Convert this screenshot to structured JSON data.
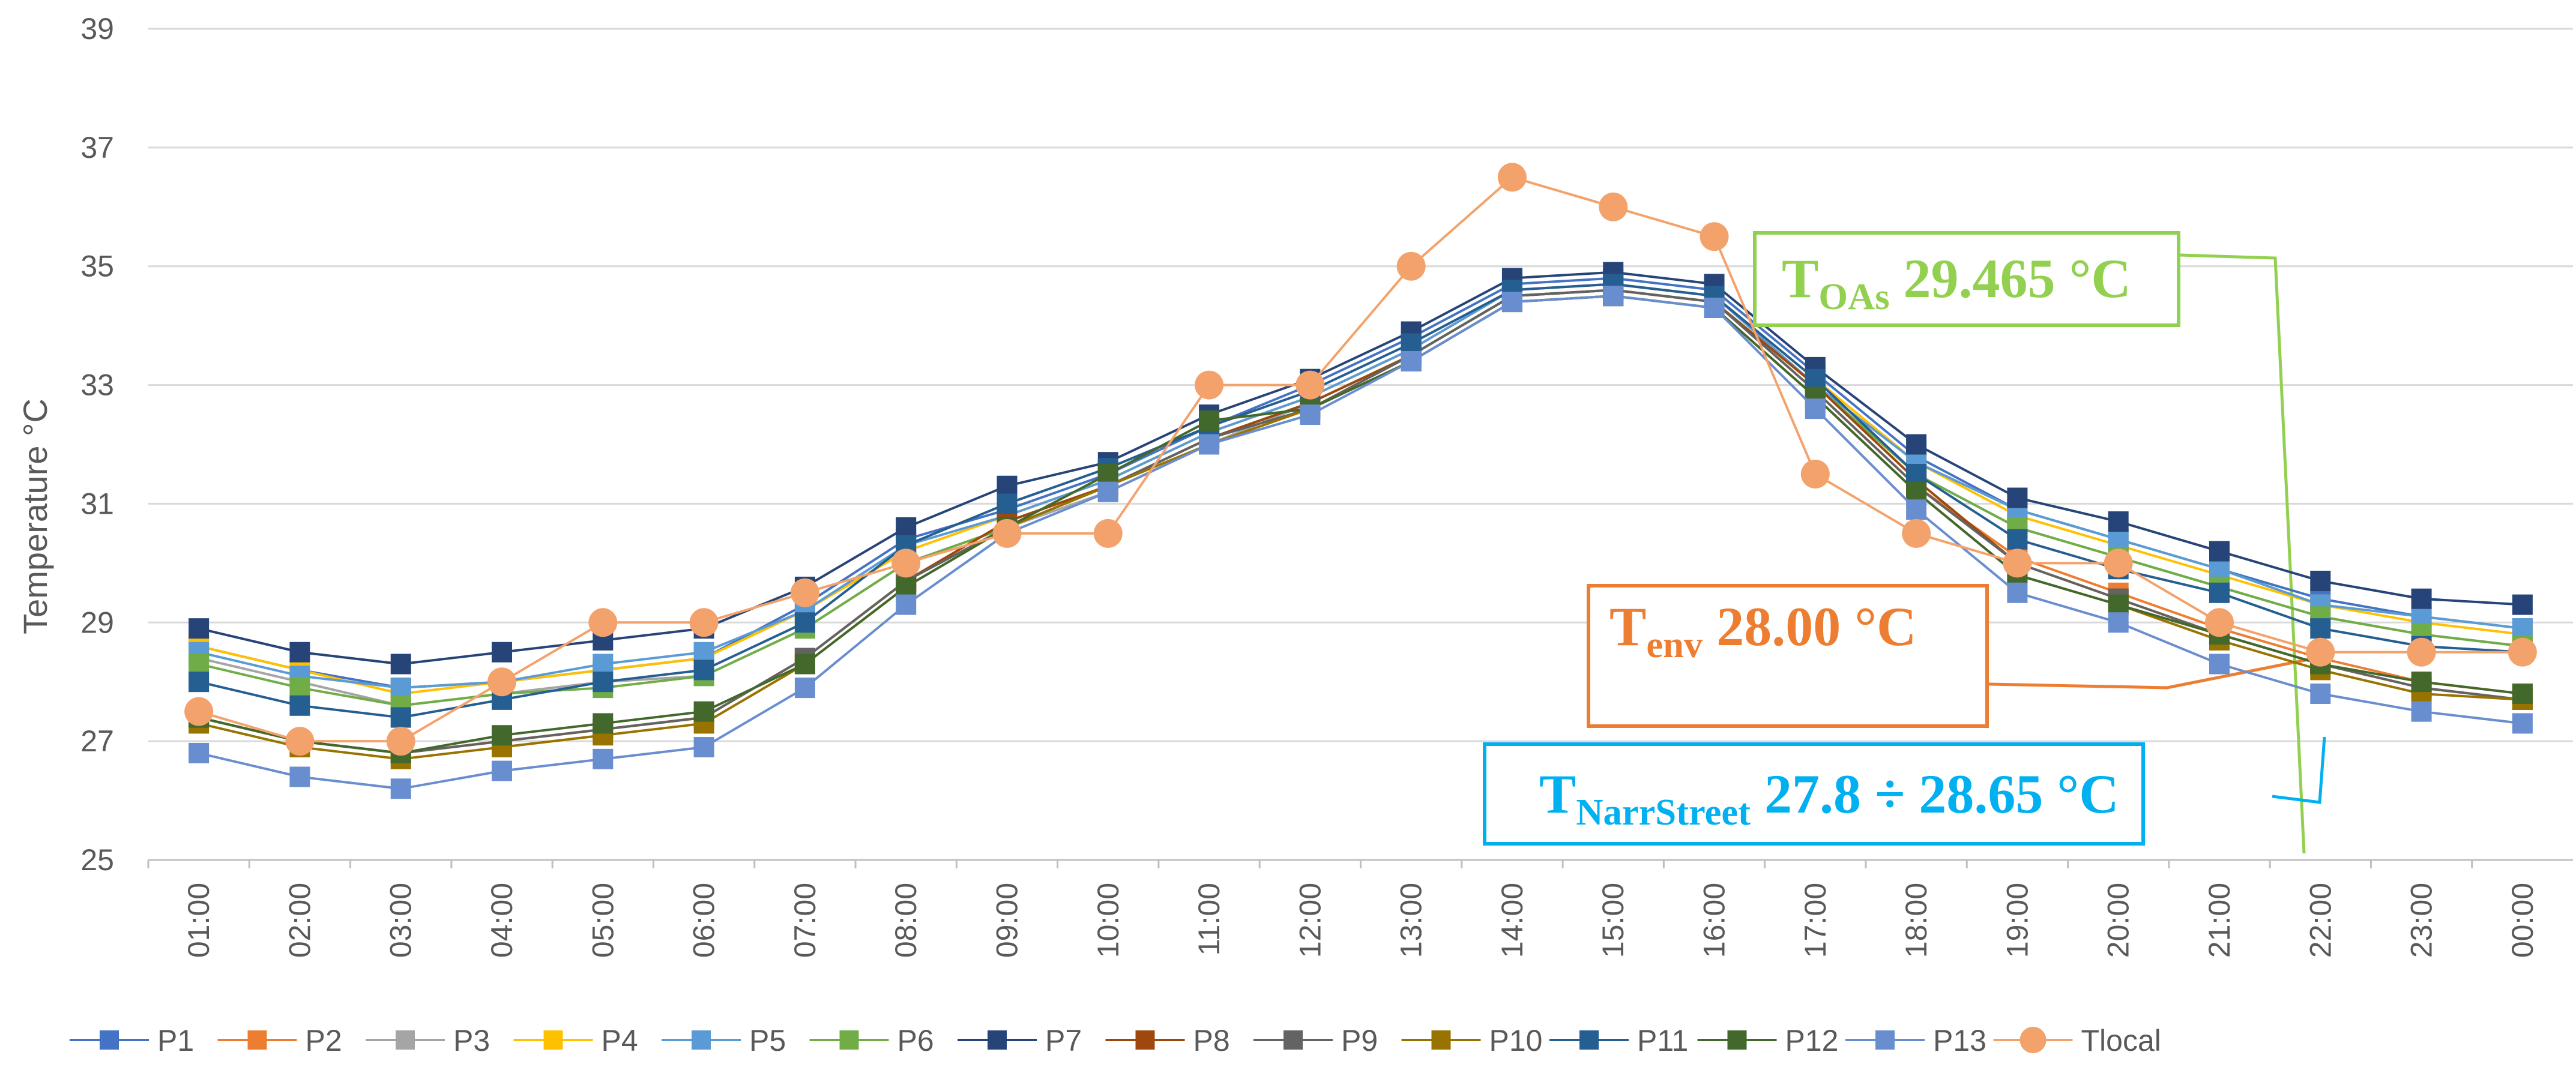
{
  "chart_data": {
    "type": "line",
    "title": "",
    "xlabel": "",
    "ylabel": "Temperature °C",
    "ylim": [
      25,
      39
    ],
    "yticks": [
      25,
      27,
      29,
      31,
      33,
      35,
      37,
      39
    ],
    "grid": true,
    "legend_position": "bottom",
    "categories": [
      "01:00",
      "02:00",
      "03:00",
      "04:00",
      "05:00",
      "06:00",
      "07:00",
      "08:00",
      "09:00",
      "10:00",
      "11:00",
      "12:00",
      "13:00",
      "14:00",
      "15:00",
      "16:00",
      "17:00",
      "18:00",
      "19:00",
      "20:00",
      "21:00",
      "22:00",
      "23:00",
      "00:00"
    ],
    "series": [
      {
        "name": "P1",
        "color": "#4472c4",
        "marker": "square",
        "values": [
          28.6,
          28.2,
          27.9,
          28.0,
          28.2,
          28.4,
          29.3,
          30.4,
          30.9,
          31.5,
          32.3,
          33.0,
          33.8,
          34.7,
          34.8,
          34.6,
          33.2,
          31.8,
          30.9,
          30.4,
          29.9,
          29.4,
          29.1,
          28.9
        ]
      },
      {
        "name": "P2",
        "color": "#ed7d31",
        "marker": "square",
        "values": [
          27.4,
          27.0,
          26.8,
          27.0,
          27.2,
          27.4,
          28.4,
          29.7,
          30.7,
          31.3,
          32.1,
          32.7,
          33.5,
          34.5,
          34.6,
          34.4,
          32.9,
          31.3,
          30.1,
          29.5,
          28.9,
          28.4,
          28.0,
          27.8
        ]
      },
      {
        "name": "P3",
        "color": "#a5a5a5",
        "marker": "square",
        "values": [
          28.4,
          28.0,
          27.6,
          27.8,
          28.0,
          28.1,
          28.9,
          30.0,
          30.6,
          31.2,
          32.0,
          32.7,
          33.5,
          34.5,
          34.6,
          34.4,
          33.0,
          31.5,
          30.6,
          30.1,
          29.6,
          29.1,
          28.8,
          28.6
        ]
      },
      {
        "name": "P4",
        "color": "#ffc000",
        "marker": "square",
        "values": [
          28.6,
          28.2,
          27.8,
          28.0,
          28.2,
          28.4,
          29.2,
          30.2,
          30.8,
          31.4,
          32.2,
          32.8,
          33.6,
          34.6,
          34.7,
          34.5,
          33.1,
          31.7,
          30.8,
          30.3,
          29.8,
          29.3,
          29.0,
          28.8
        ]
      },
      {
        "name": "P5",
        "color": "#5b9bd5",
        "marker": "square",
        "values": [
          28.5,
          28.1,
          27.9,
          28.0,
          28.3,
          28.5,
          29.2,
          30.3,
          30.8,
          31.4,
          32.2,
          32.8,
          33.6,
          34.6,
          34.7,
          34.5,
          33.0,
          31.7,
          30.9,
          30.4,
          29.9,
          29.3,
          29.1,
          28.9
        ]
      },
      {
        "name": "P6",
        "color": "#70ad47",
        "marker": "square",
        "values": [
          28.3,
          27.9,
          27.6,
          27.8,
          27.9,
          28.1,
          28.9,
          30.0,
          30.6,
          31.3,
          32.1,
          32.7,
          33.5,
          34.5,
          34.6,
          34.4,
          33.0,
          31.5,
          30.6,
          30.1,
          29.6,
          29.1,
          28.8,
          28.6
        ]
      },
      {
        "name": "P7",
        "color": "#264478",
        "marker": "square",
        "values": [
          28.9,
          28.5,
          28.3,
          28.5,
          28.7,
          28.9,
          29.6,
          30.6,
          31.3,
          31.7,
          32.5,
          33.1,
          33.9,
          34.8,
          34.9,
          34.7,
          33.3,
          32.0,
          31.1,
          30.7,
          30.2,
          29.7,
          29.4,
          29.3
        ]
      },
      {
        "name": "P8",
        "color": "#9e480e",
        "marker": "square",
        "values": [
          27.4,
          27.0,
          26.8,
          27.0,
          27.2,
          27.4,
          28.4,
          29.7,
          30.7,
          31.3,
          32.1,
          32.7,
          33.5,
          34.5,
          34.6,
          34.4,
          33.0,
          31.4,
          30.0,
          29.4,
          28.8,
          28.3,
          27.9,
          27.7
        ]
      },
      {
        "name": "P9",
        "color": "#636363",
        "marker": "square",
        "values": [
          27.4,
          27.0,
          26.8,
          27.0,
          27.2,
          27.4,
          28.4,
          29.7,
          30.6,
          31.3,
          32.1,
          32.6,
          33.5,
          34.5,
          34.6,
          34.4,
          32.9,
          31.3,
          30.0,
          29.4,
          28.8,
          28.3,
          27.9,
          27.7
        ]
      },
      {
        "name": "P10",
        "color": "#997300",
        "marker": "square",
        "values": [
          27.3,
          26.9,
          26.7,
          26.9,
          27.1,
          27.3,
          28.3,
          29.6,
          30.6,
          31.3,
          32.0,
          32.6,
          33.4,
          34.4,
          34.5,
          34.3,
          32.8,
          31.2,
          29.8,
          29.3,
          28.7,
          28.2,
          27.8,
          27.7
        ]
      },
      {
        "name": "P11",
        "color": "#255e91",
        "marker": "square",
        "values": [
          28.0,
          27.6,
          27.4,
          27.7,
          28.0,
          28.2,
          29.0,
          30.3,
          31.0,
          31.6,
          32.3,
          32.9,
          33.7,
          34.6,
          34.7,
          34.5,
          33.1,
          31.5,
          30.4,
          29.9,
          29.5,
          28.9,
          28.6,
          28.5
        ]
      },
      {
        "name": "P12",
        "color": "#43682b",
        "marker": "square",
        "values": [
          27.4,
          27.0,
          26.8,
          27.1,
          27.3,
          27.5,
          28.3,
          29.6,
          30.6,
          31.5,
          32.4,
          32.6,
          33.4,
          34.4,
          34.5,
          34.3,
          32.8,
          31.2,
          29.8,
          29.3,
          28.8,
          28.3,
          28.0,
          27.8
        ]
      },
      {
        "name": "P13",
        "color": "#698ed0",
        "marker": "square",
        "values": [
          26.8,
          26.4,
          26.2,
          26.5,
          26.7,
          26.9,
          27.9,
          29.3,
          30.5,
          31.2,
          32.0,
          32.5,
          33.4,
          34.4,
          34.5,
          34.3,
          32.6,
          30.9,
          29.5,
          29.0,
          28.3,
          27.8,
          27.5,
          27.3
        ]
      },
      {
        "name": "Tlocal",
        "color": "#f4a26b",
        "marker": "circle",
        "values": [
          27.5,
          27.0,
          27.0,
          28.0,
          29.0,
          29.0,
          29.5,
          30.0,
          30.5,
          30.5,
          33.0,
          33.0,
          35.0,
          36.5,
          36.0,
          35.5,
          31.5,
          30.5,
          30.0,
          30.0,
          29.0,
          28.5,
          28.5,
          28.5
        ]
      }
    ],
    "annotations": [
      {
        "id": "oas",
        "main": "T",
        "sub": "OAs",
        "value": "29.465 °C",
        "color": "#92d050"
      },
      {
        "id": "env",
        "main": "T",
        "sub": "env",
        "value": "28.00 °C",
        "color": "#ed7d31"
      },
      {
        "id": "narr",
        "main": "T",
        "sub": "NarrStreet",
        "value": "27.8 ÷ 28.65 °C",
        "color": "#00b0f0"
      }
    ]
  }
}
